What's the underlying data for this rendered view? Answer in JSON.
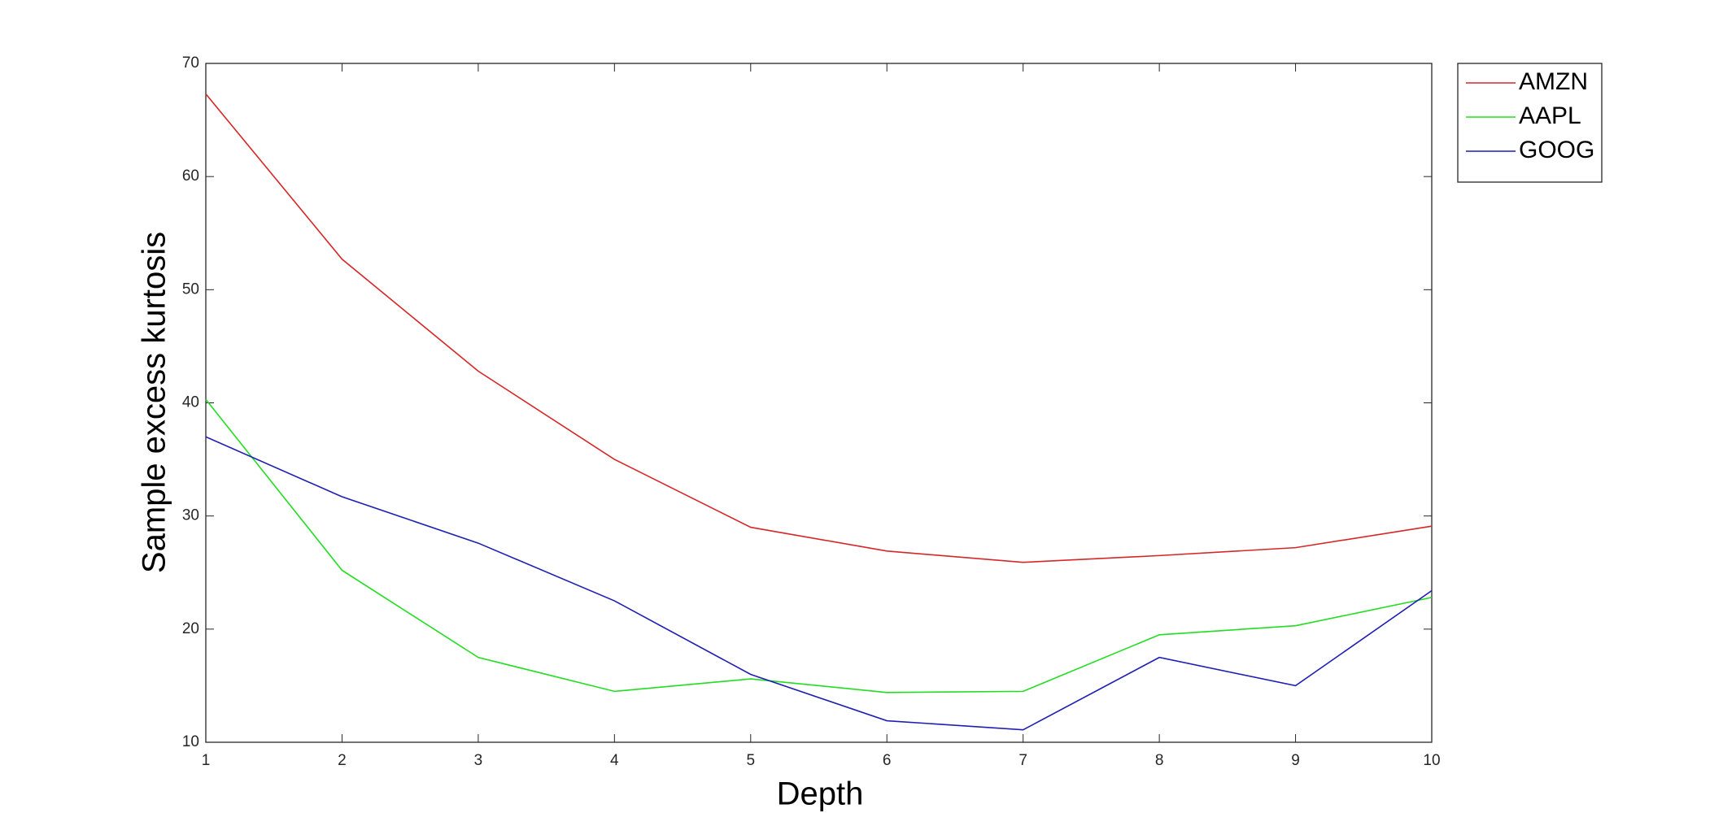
{
  "chart_data": {
    "type": "line",
    "x": [
      1,
      2,
      3,
      4,
      5,
      6,
      7,
      8,
      9,
      10
    ],
    "xlabel": "Depth",
    "ylabel": "Sample excess kurtosis",
    "xlim": [
      1,
      10
    ],
    "xticks": [
      1,
      2,
      3,
      4,
      5,
      6,
      7,
      8,
      9,
      10
    ],
    "ylim": [
      10,
      70
    ],
    "yticks": [
      10,
      20,
      30,
      40,
      50,
      60,
      70
    ],
    "legend": "outside-top-right",
    "series": [
      {
        "name": "AMZN",
        "color": "#d62728",
        "values": [
          67.3,
          52.7,
          42.8,
          35.0,
          29.0,
          26.9,
          25.9,
          26.5,
          27.2,
          29.1
        ]
      },
      {
        "name": "AAPL",
        "color": "#22dd22",
        "values": [
          40.3,
          25.2,
          17.5,
          14.5,
          15.6,
          14.4,
          14.5,
          19.5,
          20.3,
          22.8
        ]
      },
      {
        "name": "GOOG",
        "color": "#1f1fb4",
        "values": [
          37.0,
          31.7,
          27.6,
          22.5,
          16.0,
          11.9,
          11.1,
          17.5,
          15.0,
          23.4
        ]
      }
    ]
  }
}
